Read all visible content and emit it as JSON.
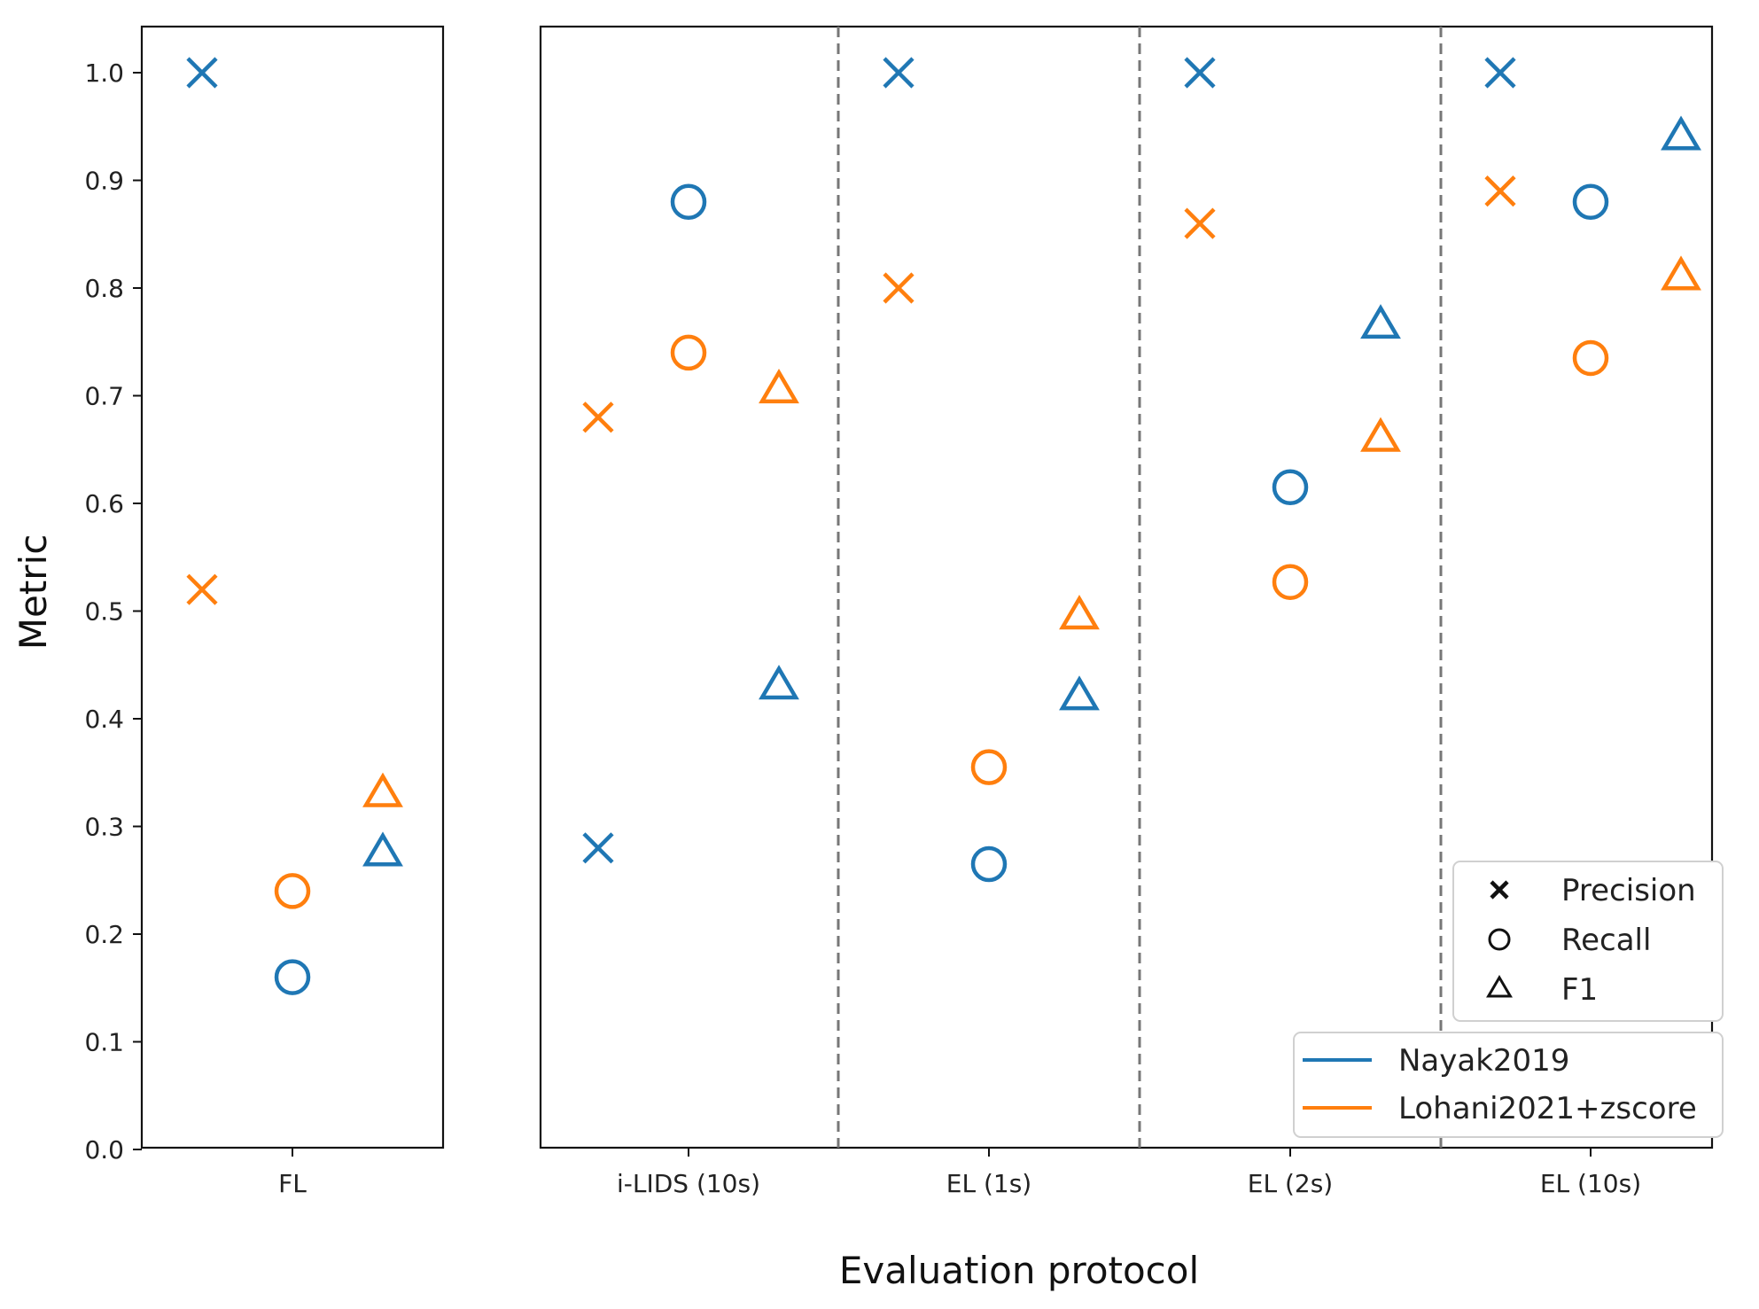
{
  "chart_data": {
    "type": "scatter",
    "ylabel": "Metric",
    "xlabel": "Evaluation protocol",
    "ylim": [
      0.0,
      1.0
    ],
    "yticks": [
      "0.0",
      "0.1",
      "0.2",
      "0.3",
      "0.4",
      "0.5",
      "0.6",
      "0.7",
      "0.8",
      "0.9",
      "1.0"
    ],
    "panels": [
      {
        "categories": [
          "FL"
        ]
      },
      {
        "categories": [
          "i-LIDS (10s)",
          "EL (1s)",
          "EL (2s)",
          "EL (10s)"
        ]
      }
    ],
    "metrics": [
      "Precision",
      "Recall",
      "F1"
    ],
    "marker_legend": [
      {
        "label": "Precision",
        "marker": "x"
      },
      {
        "label": "Recall",
        "marker": "o"
      },
      {
        "label": "F1",
        "marker": "^"
      }
    ],
    "series": [
      {
        "name": "Nayak2019",
        "color": "#1f77b4",
        "values": {
          "FL": {
            "Precision": 1.0,
            "Recall": 0.16,
            "F1": 0.275
          },
          "i-LIDS (10s)": {
            "Precision": 0.28,
            "Recall": 0.88,
            "F1": 0.43
          },
          "EL (1s)": {
            "Precision": 1.0,
            "Recall": 0.265,
            "F1": 0.42
          },
          "EL (2s)": {
            "Precision": 1.0,
            "Recall": 0.615,
            "F1": 0.765
          },
          "EL (10s)": {
            "Precision": 1.0,
            "Recall": 0.88,
            "F1": 0.94
          }
        }
      },
      {
        "name": "Lohani2021+zscore",
        "color": "#ff7f0e",
        "values": {
          "FL": {
            "Precision": 0.52,
            "Recall": 0.24,
            "F1": 0.33
          },
          "i-LIDS (10s)": {
            "Precision": 0.68,
            "Recall": 0.74,
            "F1": 0.705
          },
          "EL (1s)": {
            "Precision": 0.8,
            "Recall": 0.355,
            "F1": 0.495
          },
          "EL (2s)": {
            "Precision": 0.86,
            "Recall": 0.527,
            "F1": 0.66
          },
          "EL (10s)": {
            "Precision": 0.89,
            "Recall": 0.735,
            "F1": 0.81
          }
        }
      }
    ]
  }
}
